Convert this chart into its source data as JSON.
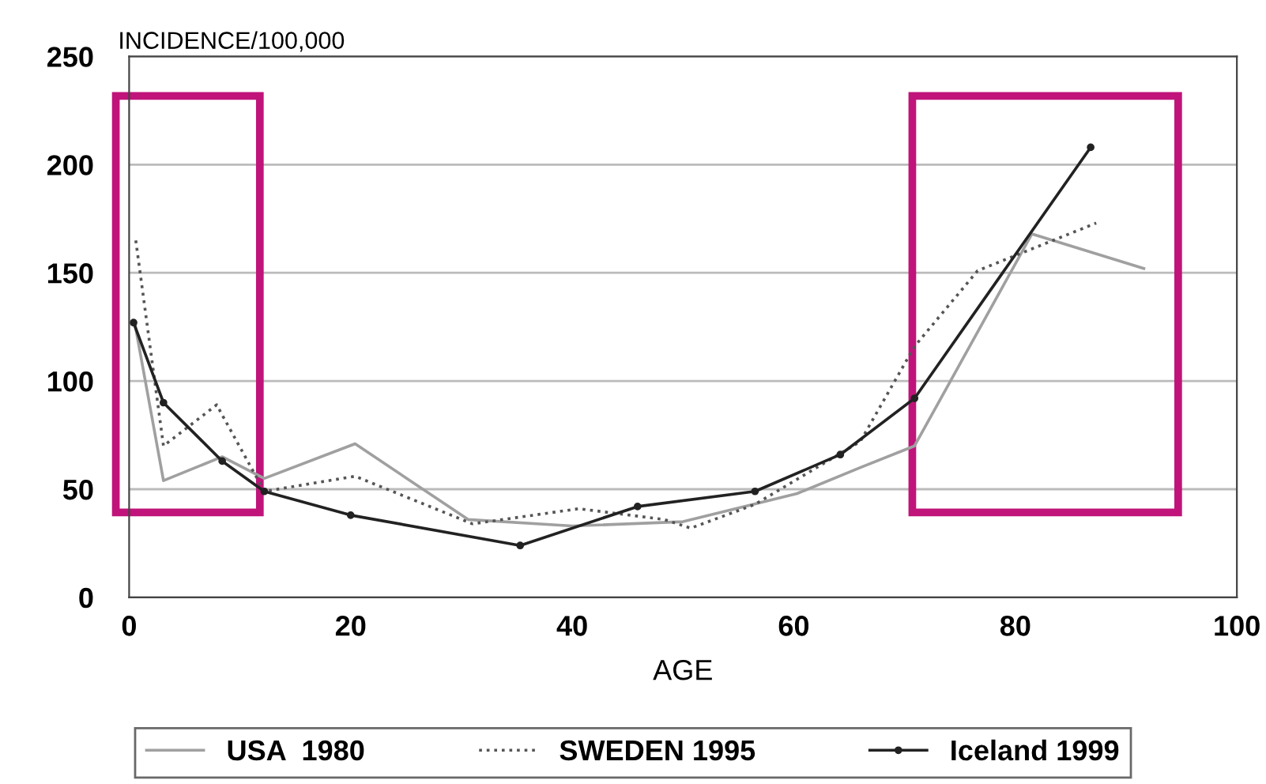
{
  "chart_data": {
    "type": "line",
    "ylabel": "INCIDENCE/100,000",
    "xlabel": "AGE",
    "xlim": [
      0,
      100
    ],
    "ylim": [
      0,
      250
    ],
    "xticks": [
      0,
      20,
      40,
      60,
      80,
      100
    ],
    "yticks": [
      0,
      50,
      100,
      150,
      200,
      250
    ],
    "grid": "y",
    "legend": "bottom",
    "series": [
      {
        "name": "USA  1980",
        "color": "#a0a0a0",
        "line_style": "solid",
        "marker": "none",
        "x": [
          0.5,
          3.1,
          8.4,
          12.2,
          20.4,
          30.6,
          40,
          50,
          60.3,
          66,
          70.9,
          81.5,
          91.6
        ],
        "values": [
          127,
          54,
          65,
          55,
          71,
          36,
          33,
          35,
          48,
          60,
          70,
          168,
          152
        ]
      },
      {
        "name": "SWEDEN 1995",
        "color": "#555555",
        "line_style": "dotted",
        "marker": "none",
        "x": [
          0.6,
          3.1,
          7.9,
          12.2,
          20.4,
          31,
          40.6,
          48.3,
          50.7,
          56.5,
          66,
          70.9,
          76.6,
          87.3
        ],
        "values": [
          165,
          70,
          89,
          49,
          56,
          34,
          41,
          36,
          32,
          43,
          72,
          116,
          151,
          173
        ]
      },
      {
        "name": "Iceland 1999",
        "color": "#222222",
        "line_style": "solid",
        "marker": "circle",
        "x": [
          0.4,
          3.1,
          8.4,
          12.2,
          20,
          35.3,
          45.9,
          56.5,
          64.2,
          70.9,
          86.8
        ],
        "values": [
          127,
          90,
          63,
          49,
          38,
          24,
          42,
          49,
          66,
          92,
          208
        ]
      }
    ]
  }
}
